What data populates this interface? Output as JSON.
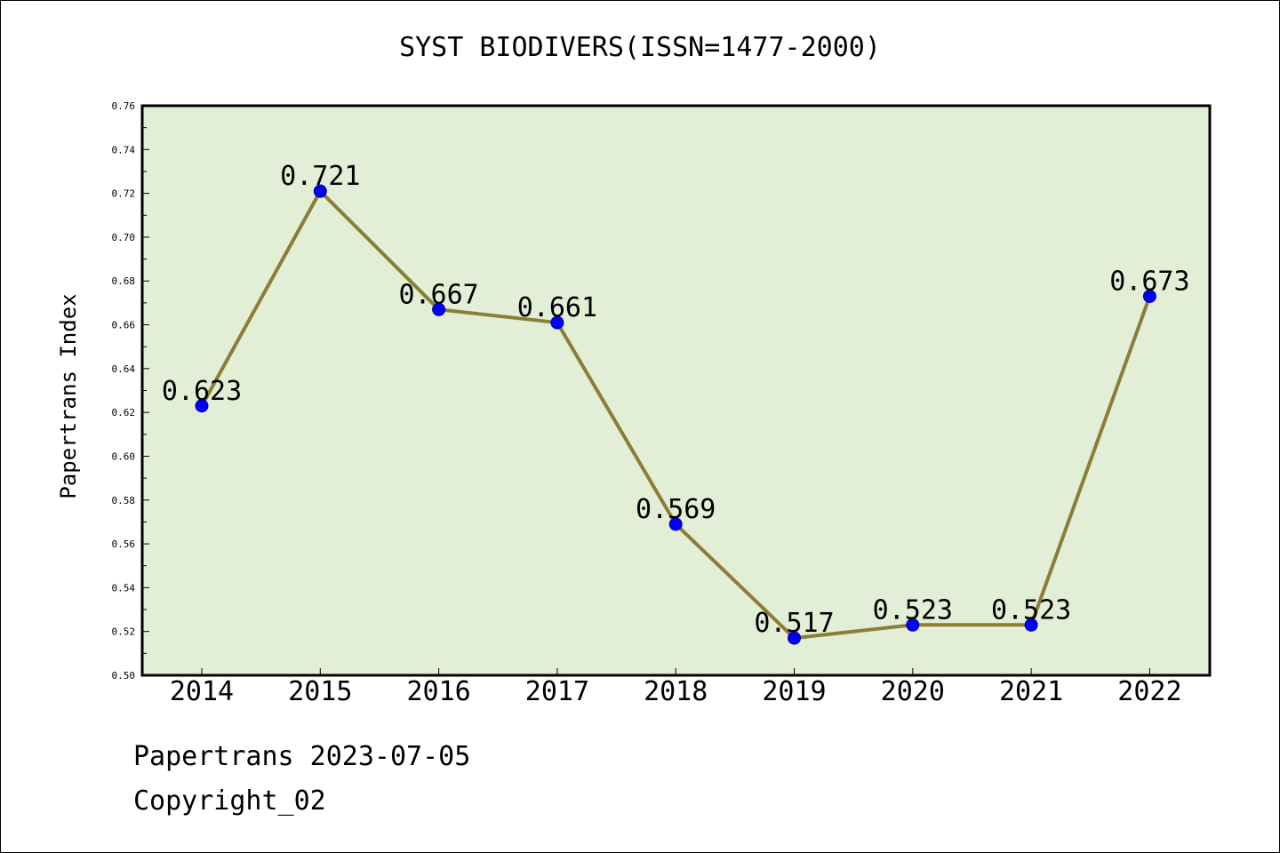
{
  "chart_data": {
    "type": "line",
    "title": "SYST BIODIVERS(ISSN=1477-2000)",
    "ylabel": "Papertrans Index",
    "xlabel": "",
    "categories": [
      "2014",
      "2015",
      "2016",
      "2017",
      "2018",
      "2019",
      "2020",
      "2021",
      "2022"
    ],
    "values": [
      0.623,
      0.721,
      0.667,
      0.661,
      0.569,
      0.517,
      0.523,
      0.523,
      0.673
    ],
    "data_labels": [
      "0.623",
      "0.721",
      "0.667",
      "0.661",
      "0.569",
      "0.517",
      "0.523",
      "0.523",
      "0.673"
    ],
    "ylim": [
      0.5,
      0.76
    ],
    "y_ticks": [
      "0.50",
      "0.52",
      "0.54",
      "0.56",
      "0.58",
      "0.60",
      "0.62",
      "0.64",
      "0.66",
      "0.68",
      "0.70",
      "0.72",
      "0.74",
      "0.76"
    ],
    "grid": false,
    "colors": {
      "plot_background": "#e2efd6",
      "line": "#8b7d35",
      "marker": "#0000ff"
    }
  },
  "footer": {
    "line1": "Papertrans 2023-07-05",
    "line2": "Copyright_02"
  }
}
